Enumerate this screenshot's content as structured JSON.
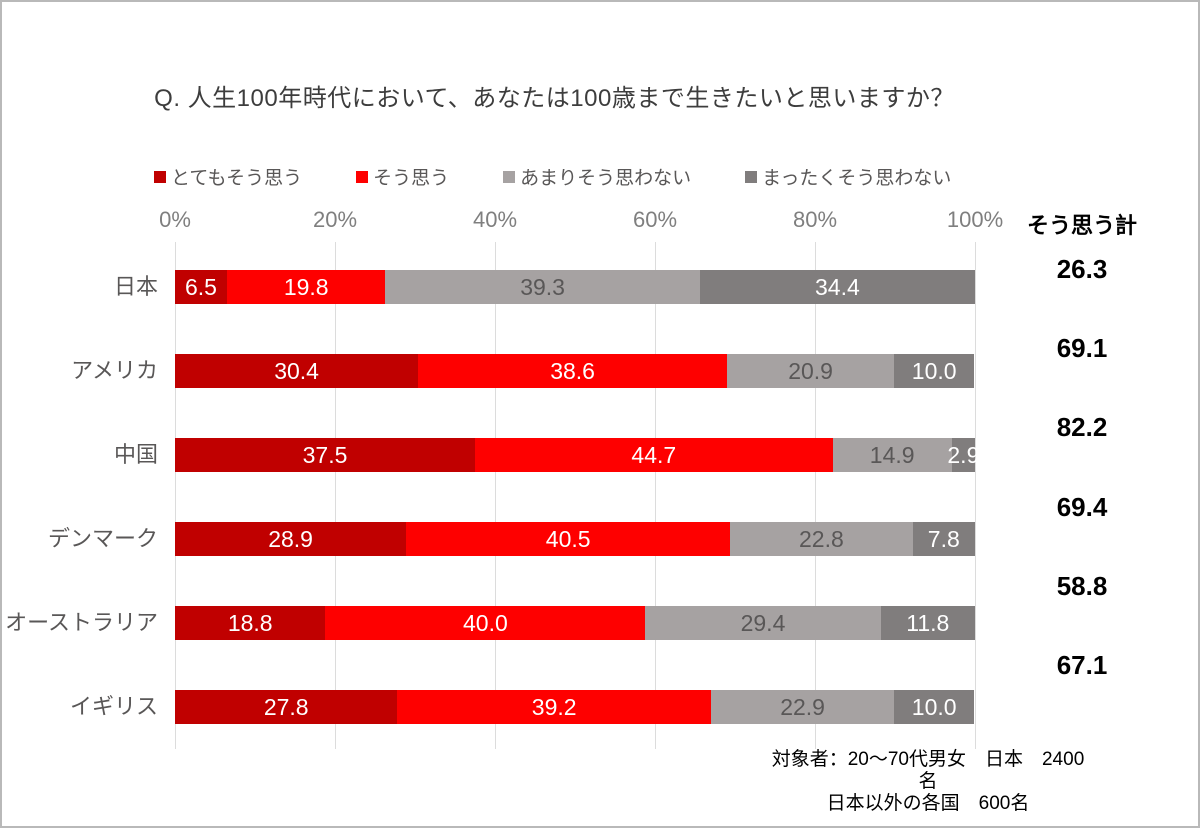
{
  "title": "Q. 人生100年時代において、あなたは100歳まで生きたいと思いますか？",
  "chart_data": {
    "type": "bar",
    "orientation": "horizontal",
    "stacked": true,
    "grid": true,
    "legend_position": "top",
    "categories": [
      "日本",
      "アメリカ",
      "中国",
      "デンマーク",
      "オーストラリア",
      "イギリス"
    ],
    "series": [
      {
        "name": "とてもそう思う",
        "color": "#c00000",
        "label_color": "#ffffff",
        "values": [
          6.5,
          30.4,
          37.5,
          28.9,
          18.8,
          27.8
        ]
      },
      {
        "name": "そう思う",
        "color": "#fe0000",
        "label_color": "#ffffff",
        "values": [
          19.8,
          38.6,
          44.7,
          40.5,
          40.0,
          39.2
        ]
      },
      {
        "name": "あまりそう思わない",
        "color": "#a6a2a2",
        "label_color": "#595757",
        "values": [
          39.3,
          20.9,
          14.9,
          22.8,
          29.4,
          22.9
        ]
      },
      {
        "name": "まったくそう思わない",
        "color": "#807d7d",
        "label_color": "#ffffff",
        "values": [
          34.4,
          10.0,
          2.9,
          7.8,
          11.8,
          10.0
        ]
      }
    ],
    "x_ticks": [
      "0%",
      "20%",
      "40%",
      "60%",
      "80%",
      "100%"
    ],
    "xlim": [
      0,
      100
    ],
    "totals_header": "そう思う計",
    "totals": [
      26.3,
      69.1,
      82.2,
      69.4,
      58.8,
      67.1
    ]
  },
  "footnote": {
    "line1": "対象者：20～70代男女　日本　2400名",
    "line2": "日本以外の各国　600名"
  }
}
